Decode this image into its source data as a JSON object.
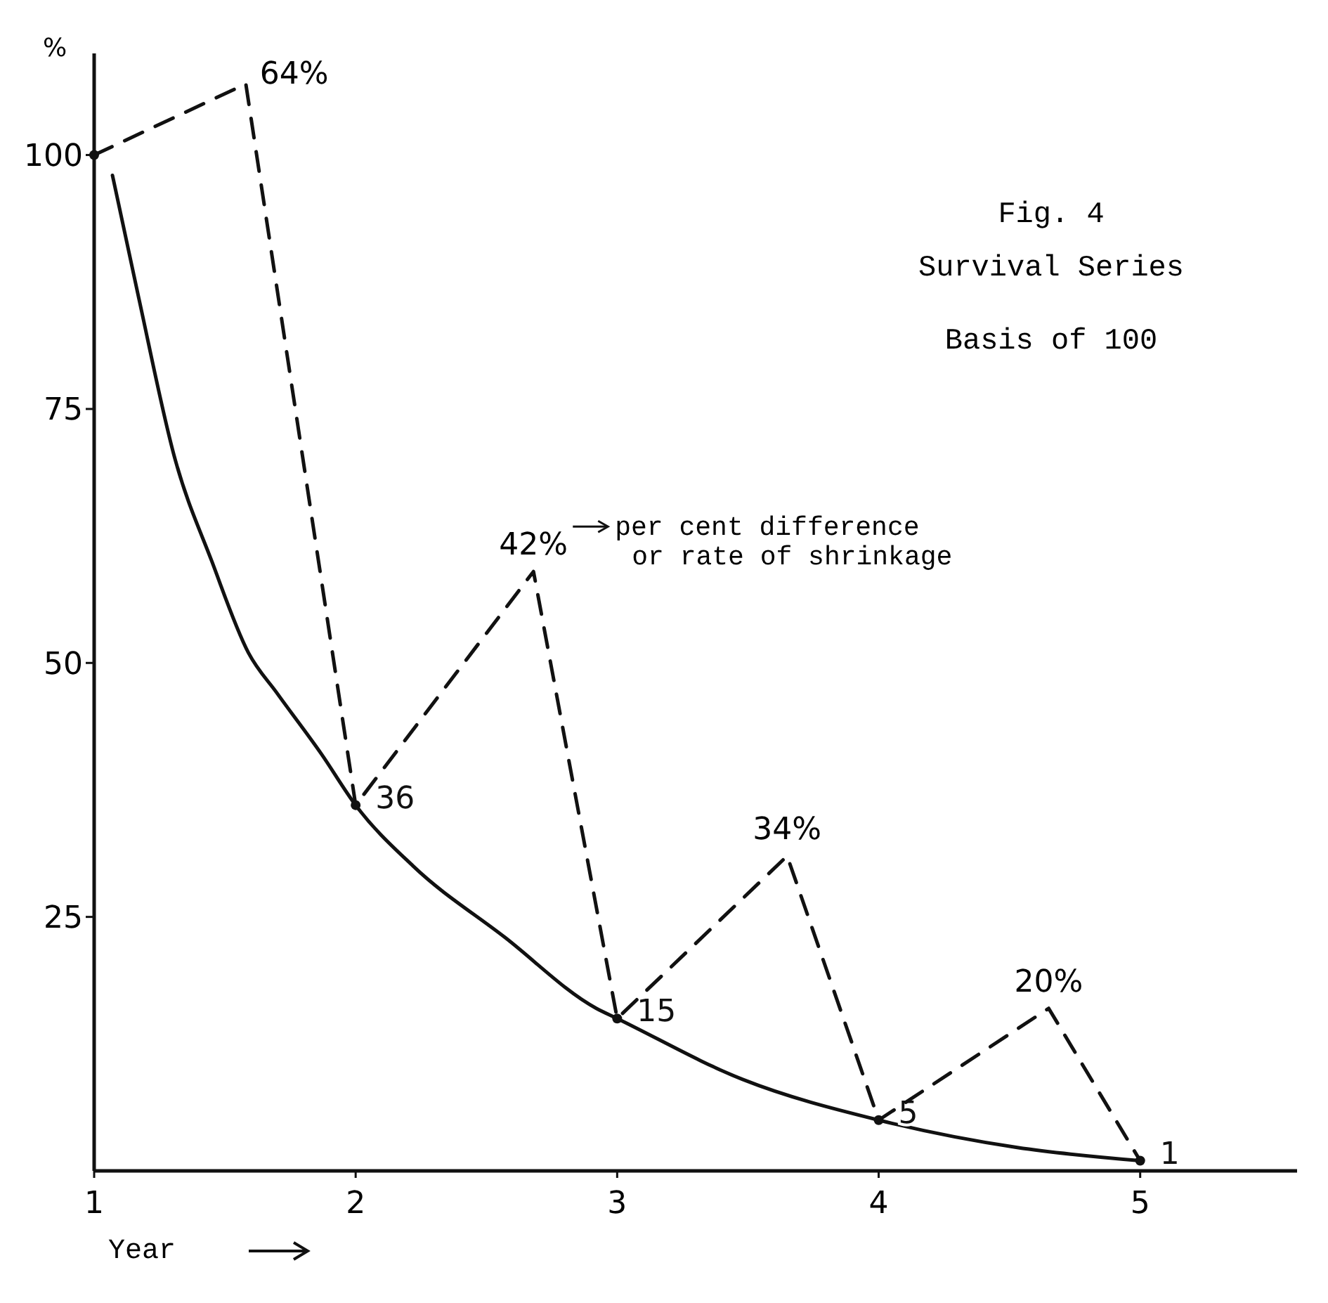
{
  "chart_data": {
    "type": "line",
    "title": "Fig. 4",
    "subtitle": "Survival Series",
    "xlabel": "Year",
    "ylabel": "%",
    "xlim": [
      1,
      5.6
    ],
    "xticks": [
      1,
      2,
      3,
      4,
      5
    ],
    "ylim": [
      0,
      110
    ],
    "yticks": [
      25,
      50,
      75,
      100
    ],
    "grid": false,
    "series": [
      {
        "line_style": "solid",
        "color": "#111111",
        "x": [
          1.07,
          1.17,
          1.31,
          1.45,
          1.59,
          1.7,
          1.87,
          2,
          2.22,
          2.57,
          2.92,
          3,
          3.48,
          4,
          4.53,
          5
        ],
        "values": [
          98,
          86,
          70,
          60,
          51,
          47,
          41,
          36,
          30,
          23,
          16,
          15,
          9,
          5,
          2.3,
          1
        ],
        "value_labels": [
          null,
          null,
          null,
          null,
          null,
          null,
          null,
          "36",
          null,
          null,
          null,
          "15",
          null,
          "5",
          null,
          "1"
        ]
      },
      {
        "line_style": "dashed",
        "color": "#111111",
        "x": [
          1,
          1.58,
          2,
          2.68,
          3,
          3.65,
          4,
          4.65,
          5
        ],
        "values": [
          100,
          107,
          36,
          59,
          15,
          31,
          5,
          16,
          1
        ]
      },
      {
        "type": "scatter",
        "marker": "circle",
        "color": "#111111",
        "x": [
          1,
          2,
          3,
          4,
          5
        ],
        "values": [
          100,
          36,
          15,
          5,
          1
        ]
      }
    ],
    "annotations": [
      "Basis of 100",
      {
        "text": "64%",
        "x": 1.58,
        "y": 107
      },
      {
        "text": "42%",
        "x": 2.68,
        "y": 59
      },
      {
        "text": "34%",
        "x": 3.65,
        "y": 31
      },
      {
        "text": "20%",
        "x": 4.65,
        "y": 16
      },
      "per cent difference\nor rate of shrinkage"
    ]
  }
}
